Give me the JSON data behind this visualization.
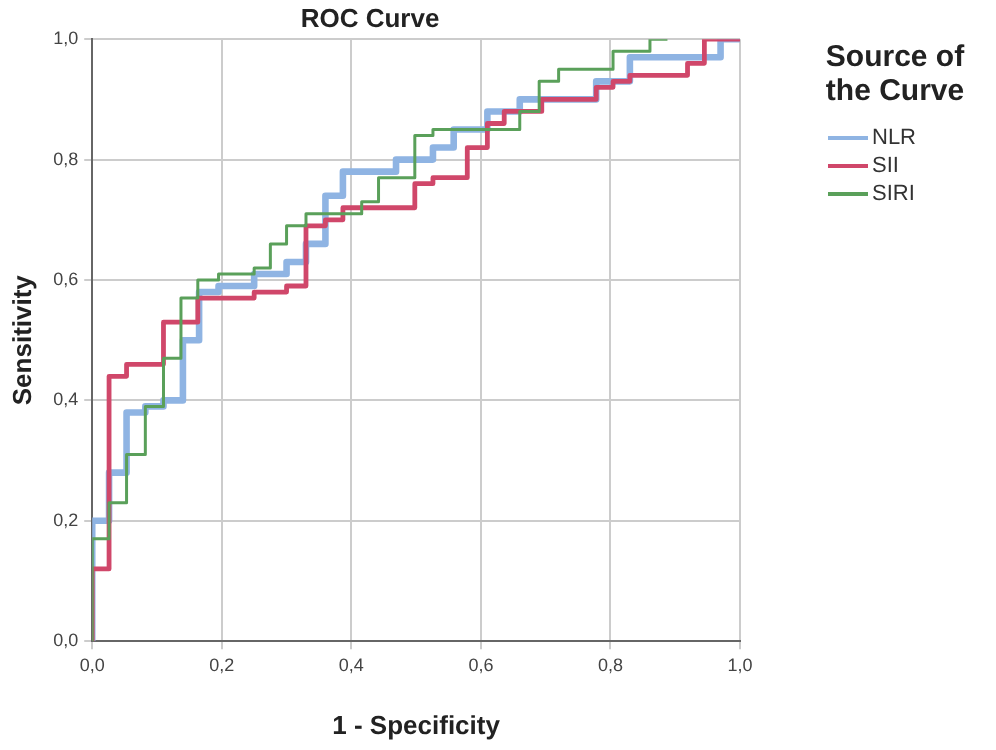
{
  "chart_data": {
    "type": "step",
    "title": "ROC Curve",
    "xlabel": "1 - Specificity",
    "ylabel": "Sensitivity",
    "legend_title": "Source of the Curve",
    "legend": "right",
    "grid": true,
    "marker": "none",
    "line_style": "solid",
    "xlim": [
      0,
      1
    ],
    "ylim": [
      0,
      1
    ],
    "xticks": [
      {
        "value": 0,
        "label": "0,0"
      },
      {
        "value": 0.2,
        "label": "0,2"
      },
      {
        "value": 0.4,
        "label": "0,4"
      },
      {
        "value": 0.6,
        "label": "0,6"
      },
      {
        "value": 0.8,
        "label": "0,8"
      },
      {
        "value": 1,
        "label": "1,0"
      }
    ],
    "yticks": [
      {
        "value": 0,
        "label": "0,0"
      },
      {
        "value": 0.2,
        "label": "0,2"
      },
      {
        "value": 0.4,
        "label": "0,4"
      },
      {
        "value": 0.6,
        "label": "0,6"
      },
      {
        "value": 0.8,
        "label": "0,8"
      },
      {
        "value": 1,
        "label": "1,0"
      }
    ],
    "series": [
      {
        "name": "NLR",
        "color": "#8fb4e3",
        "x": [
          0,
          0,
          0.026,
          0.053,
          0.082,
          0.11,
          0.14,
          0.165,
          0.195,
          0.25,
          0.3,
          0.33,
          0.36,
          0.387,
          0.469,
          0.526,
          0.558,
          0.61,
          0.66,
          0.778,
          0.83,
          0.97,
          1
        ],
        "values": [
          0,
          0.05,
          0.2,
          0.28,
          0.38,
          0.39,
          0.4,
          0.5,
          0.58,
          0.59,
          0.61,
          0.63,
          0.66,
          0.74,
          0.78,
          0.8,
          0.82,
          0.85,
          0.88,
          0.9,
          0.93,
          0.97,
          1
        ]
      },
      {
        "name": "SII",
        "color": "#d0476a",
        "x": [
          0,
          0,
          0.026,
          0.053,
          0.11,
          0.163,
          0.25,
          0.3,
          0.33,
          0.36,
          0.387,
          0.498,
          0.526,
          0.579,
          0.61,
          0.636,
          0.694,
          0.778,
          0.804,
          0.83,
          0.919,
          0.945,
          1
        ],
        "values": [
          0,
          0.01,
          0.12,
          0.44,
          0.46,
          0.53,
          0.57,
          0.58,
          0.59,
          0.69,
          0.7,
          0.72,
          0.76,
          0.77,
          0.82,
          0.86,
          0.88,
          0.9,
          0.92,
          0.93,
          0.94,
          0.96,
          1
        ]
      },
      {
        "name": "SIRI",
        "color": "#5aa05a",
        "x": [
          0,
          0,
          0.026,
          0.053,
          0.082,
          0.11,
          0.137,
          0.163,
          0.195,
          0.25,
          0.275,
          0.3,
          0.33,
          0.416,
          0.442,
          0.498,
          0.526,
          0.66,
          0.69,
          0.72,
          0.804,
          0.861,
          0.888
        ],
        "values": [
          0,
          0.09,
          0.17,
          0.23,
          0.31,
          0.39,
          0.47,
          0.57,
          0.6,
          0.61,
          0.62,
          0.66,
          0.69,
          0.71,
          0.73,
          0.77,
          0.84,
          0.85,
          0.88,
          0.93,
          0.95,
          0.98,
          1
        ]
      }
    ]
  }
}
